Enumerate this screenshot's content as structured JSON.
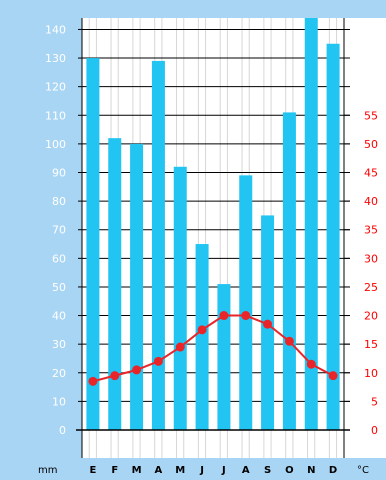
{
  "chart_data": {
    "type": "bar",
    "categories": [
      "E",
      "F",
      "M",
      "A",
      "M",
      "J",
      "J",
      "A",
      "S",
      "O",
      "N",
      "D"
    ],
    "series": [
      {
        "type": "bar",
        "axis": "left",
        "values": [
          130,
          102,
          100,
          129,
          92,
          65,
          51,
          89,
          75,
          111,
          144,
          135
        ]
      },
      {
        "type": "line",
        "axis": "right",
        "values": [
          8.5,
          9.5,
          10.5,
          12,
          14.5,
          17.5,
          20,
          20,
          18.5,
          15.5,
          11.5,
          9.5
        ]
      }
    ],
    "y_left": {
      "unit": "mm",
      "ylim": [
        0,
        144
      ],
      "ticks": [
        0,
        10,
        20,
        30,
        40,
        50,
        60,
        70,
        80,
        90,
        100,
        110,
        120,
        130,
        140
      ]
    },
    "y_right": {
      "unit": "°C",
      "ylim": [
        0,
        72
      ],
      "ticks": [
        0,
        5,
        10,
        15,
        20,
        25,
        30,
        35,
        40,
        45,
        50,
        55
      ]
    },
    "grid": true,
    "colors": {
      "bars": "#22c4f2",
      "line": "#e8262a",
      "background": "#a9d5f5",
      "grid": "#000000",
      "left_ticks": "#ffffff",
      "right_ticks": "#ff0000"
    }
  }
}
